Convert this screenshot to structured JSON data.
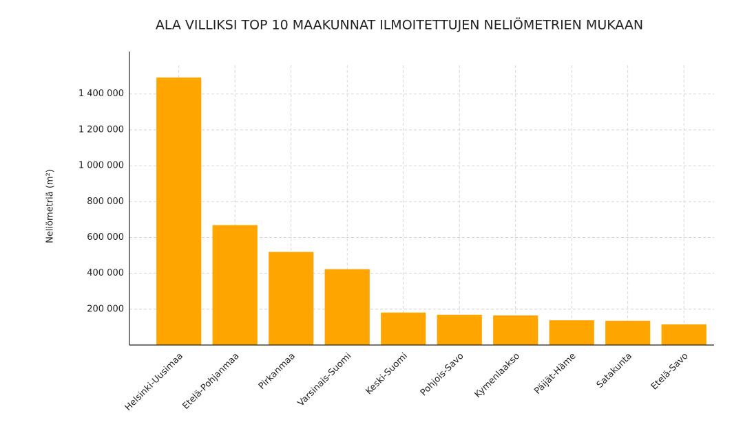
{
  "chart_data": {
    "type": "bar",
    "title": "ALA VILLIKSI TOP 10 MAAKUNNAT ILMOITETTUJEN NELIÖMETRIEN MUKAAN",
    "y_label": "Neliömetriä (m²)",
    "categories": [
      "Helsinki-Uusimaa",
      "Etelä-Pohjanmaa",
      "Pirkanmaa",
      "Varsinais-Suomi",
      "Keski-Suomi",
      "Pohjois-Savo",
      "Kymenlaakso",
      "Päijät-Häme",
      "Satakunta",
      "Etelä-Savo"
    ],
    "values": [
      1492000,
      669000,
      519000,
      423000,
      181000,
      169000,
      165000,
      138000,
      135000,
      115000
    ],
    "color": "#ffa500",
    "ylim": [
      0,
      1560000
    ],
    "yticks": [
      {
        "value": 200000,
        "label": "200 000"
      },
      {
        "value": 400000,
        "label": "400 000"
      },
      {
        "value": 600000,
        "label": "600 000"
      },
      {
        "value": 800000,
        "label": "800 000"
      },
      {
        "value": 1000000,
        "label": "1 000 000"
      },
      {
        "value": 1200000,
        "label": "1 200 000"
      },
      {
        "value": 1400000,
        "label": "1 400 000"
      }
    ],
    "grid": true
  }
}
